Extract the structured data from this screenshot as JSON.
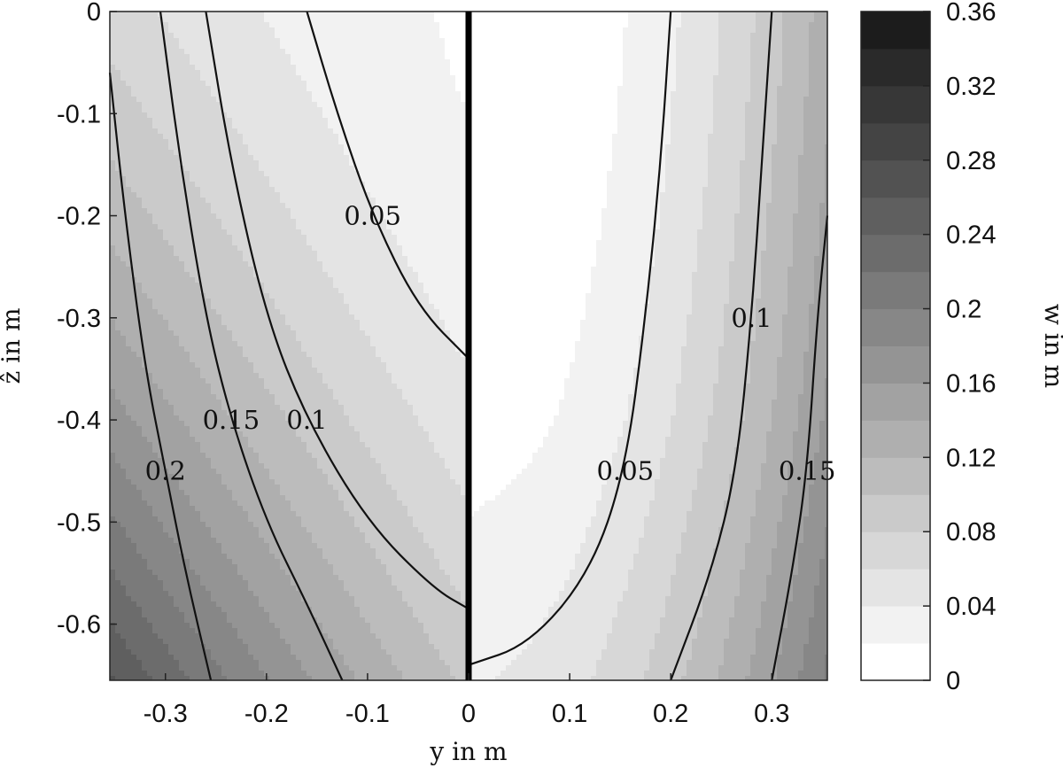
{
  "chart_data": {
    "type": "contour",
    "xlabel": "y in m",
    "ylabel": "ẑ in m",
    "colorbar_label": "w in m",
    "xlim": [
      -0.355,
      0.355
    ],
    "ylim": [
      -0.655,
      0
    ],
    "x_ticks": [
      -0.3,
      -0.2,
      -0.1,
      0,
      0.1,
      0.2,
      0.3
    ],
    "x_tick_labels": [
      "-0.3",
      "-0.2",
      "-0.1",
      "0",
      "0.1",
      "0.2",
      "0.3"
    ],
    "y_ticks": [
      0,
      -0.1,
      -0.2,
      -0.3,
      -0.4,
      -0.5,
      -0.6
    ],
    "y_tick_labels": [
      "0",
      "-0.1",
      "-0.2",
      "-0.3",
      "-0.4",
      "-0.5",
      "-0.6"
    ],
    "colorbar_ticks": [
      0,
      0.04,
      0.08,
      0.12,
      0.16,
      0.2,
      0.24,
      0.28,
      0.32,
      0.36
    ],
    "colorbar_tick_labels": [
      "0",
      "0.04",
      "0.08",
      "0.12",
      "0.16",
      "0.2",
      "0.24",
      "0.28",
      "0.32",
      "0.36"
    ],
    "colorbar_range": [
      0,
      0.36
    ],
    "fill_level_step": 0.02,
    "divider_at_y": 0,
    "colormap": "gray-reversed",
    "left_region": {
      "description_free": true,
      "w_at_top_center": 0.02,
      "contours": [
        {
          "level": 0.05,
          "label": "0.05",
          "points": [
            [
              -0.16,
              0.0
            ],
            [
              -0.13,
              -0.1
            ],
            [
              -0.095,
              -0.2
            ],
            [
              -0.05,
              -0.29
            ],
            [
              0.0,
              -0.34
            ]
          ]
        },
        {
          "level": 0.1,
          "label": "0.1",
          "points": [
            [
              -0.26,
              0.0
            ],
            [
              -0.235,
              -0.15
            ],
            [
              -0.2,
              -0.3
            ],
            [
              -0.16,
              -0.4
            ],
            [
              -0.1,
              -0.5
            ],
            [
              -0.035,
              -0.565
            ],
            [
              0.0,
              -0.585
            ]
          ]
        },
        {
          "level": 0.15,
          "label": "0.15",
          "points": [
            [
              -0.305,
              0.0
            ],
            [
              -0.285,
              -0.15
            ],
            [
              -0.26,
              -0.3
            ],
            [
              -0.235,
              -0.4
            ],
            [
              -0.2,
              -0.5
            ],
            [
              -0.16,
              -0.58
            ],
            [
              -0.125,
              -0.655
            ]
          ]
        },
        {
          "level": 0.2,
          "label": "0.2",
          "points": [
            [
              -0.355,
              -0.06
            ],
            [
              -0.34,
              -0.2
            ],
            [
              -0.32,
              -0.35
            ],
            [
              -0.3,
              -0.45
            ],
            [
              -0.28,
              -0.55
            ],
            [
              -0.255,
              -0.655
            ]
          ]
        }
      ]
    },
    "right_region": {
      "w_at_top_center": 0.0,
      "contours": [
        {
          "level": 0.05,
          "label": "0.05",
          "points": [
            [
              0.0,
              -0.64
            ],
            [
              0.06,
              -0.62
            ],
            [
              0.12,
              -0.55
            ],
            [
              0.155,
              -0.45
            ],
            [
              0.175,
              -0.3
            ],
            [
              0.19,
              -0.15
            ],
            [
              0.2,
              0.0
            ]
          ]
        },
        {
          "level": 0.1,
          "label": "0.1",
          "points": [
            [
              0.2,
              -0.655
            ],
            [
              0.24,
              -0.55
            ],
            [
              0.265,
              -0.45
            ],
            [
              0.28,
              -0.3
            ],
            [
              0.29,
              -0.15
            ],
            [
              0.3,
              0.0
            ]
          ]
        },
        {
          "level": 0.15,
          "label": "0.15",
          "points": [
            [
              0.3,
              -0.655
            ],
            [
              0.32,
              -0.55
            ],
            [
              0.335,
              -0.45
            ],
            [
              0.345,
              -0.3
            ],
            [
              0.355,
              -0.2
            ]
          ]
        }
      ]
    }
  }
}
